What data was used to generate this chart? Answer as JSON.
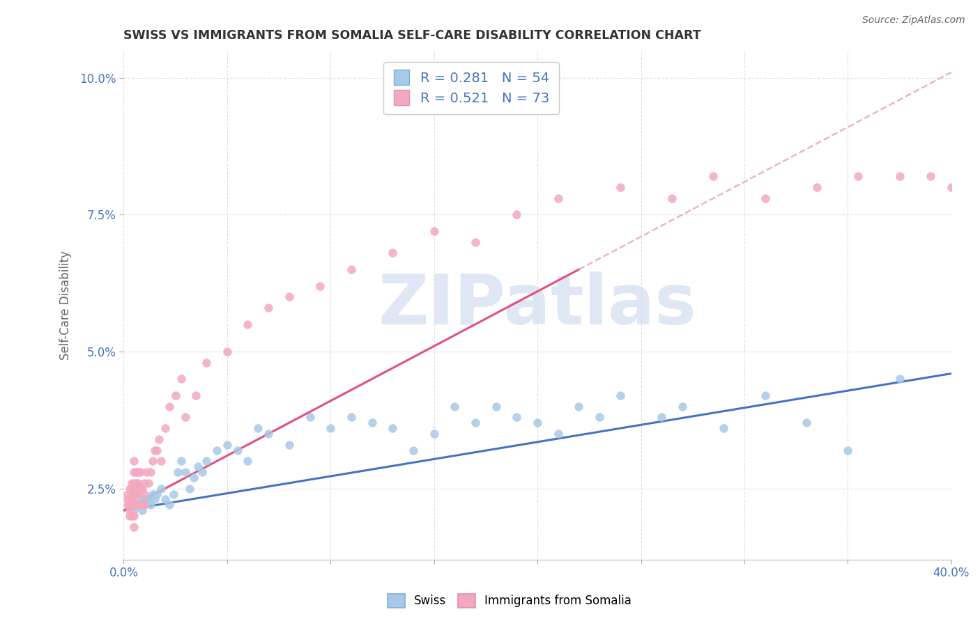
{
  "title": "SWISS VS IMMIGRANTS FROM SOMALIA SELF-CARE DISABILITY CORRELATION CHART",
  "source": "Source: ZipAtlas.com",
  "ylabel": "Self-Care Disability",
  "xlim": [
    0.0,
    0.4
  ],
  "ylim": [
    0.012,
    0.105
  ],
  "xticks": [
    0.0,
    0.05,
    0.1,
    0.15,
    0.2,
    0.25,
    0.3,
    0.35,
    0.4
  ],
  "yticks": [
    0.025,
    0.05,
    0.075,
    0.1
  ],
  "ytick_labels": [
    "2.5%",
    "5.0%",
    "7.5%",
    "10.0%"
  ],
  "xtick_labels": [
    "0.0%",
    "",
    "",
    "",
    "",
    "",
    "",
    "",
    "40.0%"
  ],
  "swiss_color": "#A8C8E8",
  "somalia_color": "#F4A8C0",
  "swiss_line_color": "#4472C4",
  "somalia_line_color": "#E05080",
  "somalia_dash_color": "#E8A0B8",
  "R_swiss": 0.281,
  "N_swiss": 54,
  "R_somalia": 0.521,
  "N_somalia": 73,
  "swiss_x": [
    0.005,
    0.006,
    0.007,
    0.008,
    0.009,
    0.01,
    0.011,
    0.012,
    0.013,
    0.014,
    0.015,
    0.016,
    0.018,
    0.02,
    0.022,
    0.024,
    0.026,
    0.028,
    0.03,
    0.032,
    0.034,
    0.036,
    0.038,
    0.04,
    0.045,
    0.05,
    0.055,
    0.06,
    0.065,
    0.07,
    0.08,
    0.09,
    0.1,
    0.11,
    0.12,
    0.13,
    0.14,
    0.15,
    0.16,
    0.17,
    0.18,
    0.19,
    0.2,
    0.21,
    0.22,
    0.23,
    0.24,
    0.26,
    0.27,
    0.29,
    0.31,
    0.33,
    0.35,
    0.375
  ],
  "swiss_y": [
    0.021,
    0.022,
    0.022,
    0.023,
    0.021,
    0.022,
    0.023,
    0.023,
    0.022,
    0.024,
    0.023,
    0.024,
    0.025,
    0.023,
    0.022,
    0.024,
    0.028,
    0.03,
    0.028,
    0.025,
    0.027,
    0.029,
    0.028,
    0.03,
    0.032,
    0.033,
    0.032,
    0.03,
    0.036,
    0.035,
    0.033,
    0.038,
    0.036,
    0.038,
    0.037,
    0.036,
    0.032,
    0.035,
    0.04,
    0.037,
    0.04,
    0.038,
    0.037,
    0.035,
    0.04,
    0.038,
    0.042,
    0.038,
    0.04,
    0.036,
    0.042,
    0.037,
    0.032,
    0.045
  ],
  "somalia_x": [
    0.002,
    0.002,
    0.002,
    0.003,
    0.003,
    0.003,
    0.003,
    0.003,
    0.004,
    0.004,
    0.004,
    0.004,
    0.004,
    0.005,
    0.005,
    0.005,
    0.005,
    0.005,
    0.005,
    0.005,
    0.005,
    0.006,
    0.006,
    0.006,
    0.006,
    0.007,
    0.007,
    0.007,
    0.007,
    0.008,
    0.008,
    0.008,
    0.009,
    0.009,
    0.01,
    0.01,
    0.01,
    0.011,
    0.012,
    0.013,
    0.014,
    0.015,
    0.016,
    0.017,
    0.018,
    0.02,
    0.022,
    0.025,
    0.028,
    0.03,
    0.035,
    0.04,
    0.05,
    0.06,
    0.07,
    0.08,
    0.095,
    0.11,
    0.13,
    0.15,
    0.17,
    0.19,
    0.21,
    0.24,
    0.265,
    0.285,
    0.31,
    0.335,
    0.355,
    0.375,
    0.39,
    0.4,
    0.405
  ],
  "somalia_y": [
    0.022,
    0.024,
    0.023,
    0.02,
    0.021,
    0.022,
    0.023,
    0.025,
    0.02,
    0.022,
    0.023,
    0.025,
    0.026,
    0.018,
    0.02,
    0.022,
    0.024,
    0.025,
    0.026,
    0.028,
    0.03,
    0.022,
    0.024,
    0.026,
    0.028,
    0.022,
    0.024,
    0.026,
    0.028,
    0.022,
    0.025,
    0.028,
    0.022,
    0.025,
    0.022,
    0.024,
    0.026,
    0.028,
    0.026,
    0.028,
    0.03,
    0.032,
    0.032,
    0.034,
    0.03,
    0.036,
    0.04,
    0.042,
    0.045,
    0.038,
    0.042,
    0.048,
    0.05,
    0.055,
    0.058,
    0.06,
    0.062,
    0.065,
    0.068,
    0.072,
    0.07,
    0.075,
    0.078,
    0.08,
    0.078,
    0.082,
    0.078,
    0.08,
    0.082,
    0.082,
    0.082,
    0.08,
    0.078
  ],
  "background_color": "#FFFFFF",
  "grid_color": "#DDDDDD",
  "watermark_color": "#C8D8EC",
  "watermark_alpha": 0.6
}
